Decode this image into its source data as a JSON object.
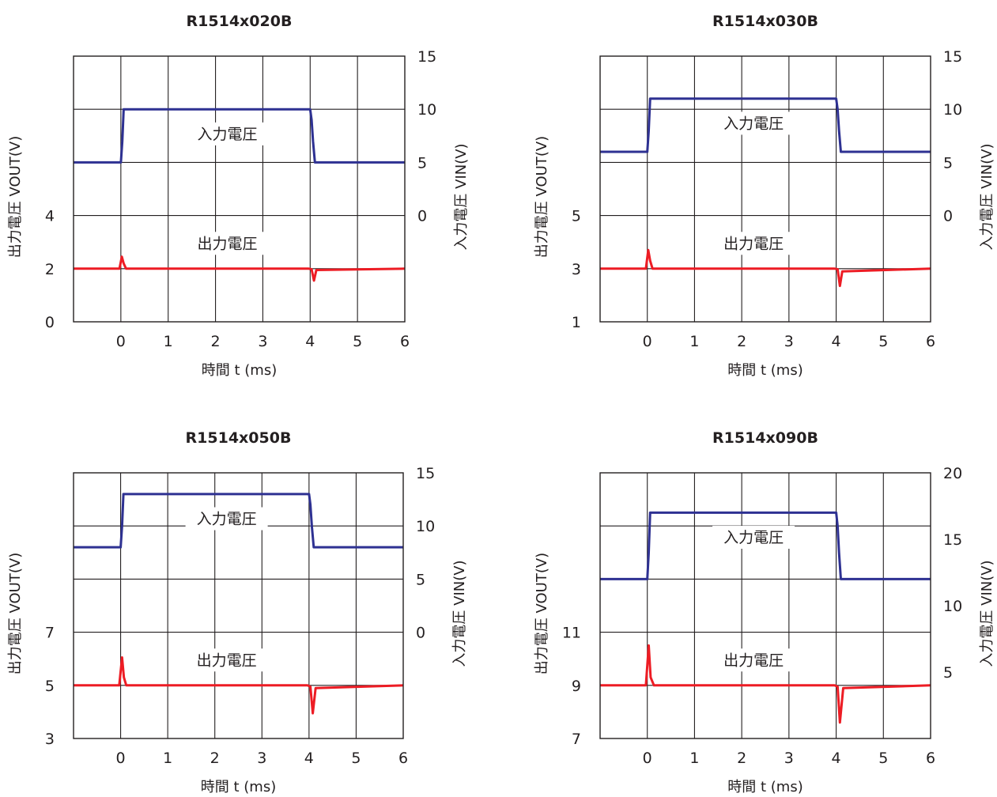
{
  "chart_data": [
    {
      "type": "line",
      "title": "R1514x020B",
      "xlabel": "時間 t (ms)",
      "ylabel_left": "出力電圧 VOUT(V)",
      "ylabel_right": "入力電圧 VIN(V)",
      "xlim": [
        -1,
        6
      ],
      "x_ticks": [
        "0",
        "1",
        "2",
        "3",
        "4",
        "5",
        "6"
      ],
      "left_ylim": [
        0,
        10
      ],
      "left_ticks": [
        "0",
        "2",
        "4"
      ],
      "right_ylim": [
        -10,
        15
      ],
      "right_ticks": [
        "0",
        "5",
        "10",
        "15"
      ],
      "grid": true,
      "series": [
        {
          "name": "入力電圧",
          "axis": "right",
          "color": "#2e3192",
          "x": [
            -1,
            0,
            0.03,
            0.06,
            4.0,
            4.03,
            4.06,
            4.1,
            6
          ],
          "y": [
            5,
            5,
            7,
            10,
            10,
            9,
            7,
            5,
            5
          ]
        },
        {
          "name": "出力電圧",
          "axis": "left",
          "color": "#ed1c24",
          "x": [
            -1,
            -0.03,
            0.02,
            0.06,
            0.11,
            3.97,
            4.03,
            4.08,
            4.13,
            6
          ],
          "y": [
            2,
            2,
            2.45,
            2.2,
            2,
            2,
            1.98,
            1.55,
            1.95,
            2
          ]
        }
      ]
    },
    {
      "type": "line",
      "title": "R1514x030B",
      "xlabel": "時間 t (ms)",
      "ylabel_left": "出力電圧 VOUT(V)",
      "ylabel_right": "入力電圧 VIN(V)",
      "xlim": [
        -1,
        6
      ],
      "x_ticks": [
        "0",
        "1",
        "2",
        "3",
        "4",
        "5",
        "6"
      ],
      "left_ylim": [
        1,
        11
      ],
      "left_ticks": [
        "1",
        "3",
        "5"
      ],
      "right_ylim": [
        -10,
        15
      ],
      "right_ticks": [
        "0",
        "5",
        "10",
        "15"
      ],
      "grid": true,
      "series": [
        {
          "name": "入力電圧",
          "axis": "right",
          "color": "#2e3192",
          "x": [
            -1,
            0,
            0.03,
            0.06,
            4.0,
            4.03,
            4.06,
            4.1,
            6
          ],
          "y": [
            6,
            6,
            8,
            11,
            11,
            10,
            8,
            6,
            6
          ]
        },
        {
          "name": "出力電圧",
          "axis": "left",
          "color": "#ed1c24",
          "x": [
            -1,
            -0.03,
            0.02,
            0.06,
            0.11,
            3.97,
            4.03,
            4.08,
            4.13,
            6
          ],
          "y": [
            3,
            3,
            3.7,
            3.3,
            3,
            3,
            2.98,
            2.35,
            2.9,
            3
          ]
        }
      ]
    },
    {
      "type": "line",
      "title": "R1514x050B",
      "xlabel": "時間 t (ms)",
      "ylabel_left": "出力電圧 VOUT(V)",
      "ylabel_right": "入力電圧 VIN(V)",
      "xlim": [
        -1,
        6
      ],
      "x_ticks": [
        "0",
        "1",
        "2",
        "3",
        "4",
        "5",
        "6"
      ],
      "left_ylim": [
        3,
        13
      ],
      "left_ticks": [
        "3",
        "5",
        "7"
      ],
      "right_ylim": [
        -10,
        15
      ],
      "right_ticks": [
        "0",
        "5",
        "10",
        "15"
      ],
      "grid": true,
      "series": [
        {
          "name": "入力電圧",
          "axis": "right",
          "color": "#2e3192",
          "x": [
            -1,
            0,
            0.03,
            0.06,
            4.0,
            4.03,
            4.06,
            4.1,
            6
          ],
          "y": [
            8,
            8,
            10,
            13,
            13,
            12,
            10,
            8,
            8
          ]
        },
        {
          "name": "出力電圧",
          "axis": "left",
          "color": "#ed1c24",
          "x": [
            -1,
            -0.03,
            0.03,
            0.07,
            0.12,
            3.97,
            4.03,
            4.08,
            4.14,
            6
          ],
          "y": [
            5,
            5,
            6.05,
            5.3,
            5,
            5,
            4.95,
            3.95,
            4.9,
            5
          ]
        }
      ]
    },
    {
      "type": "line",
      "title": "R1514x090B",
      "xlabel": "時間 t (ms)",
      "ylabel_left": "出力電圧 VOUT(V)",
      "ylabel_right": "入力電圧 VIN(V)",
      "xlim": [
        -1,
        6
      ],
      "x_ticks": [
        "0",
        "1",
        "2",
        "3",
        "4",
        "5",
        "6"
      ],
      "left_ylim": [
        7,
        17
      ],
      "left_ticks": [
        "7",
        "9",
        "11"
      ],
      "right_ylim": [
        0,
        20
      ],
      "right_ticks": [
        "5",
        "10",
        "15",
        "20"
      ],
      "grid": true,
      "series": [
        {
          "name": "入力電圧",
          "axis": "right",
          "color": "#2e3192",
          "x": [
            -1,
            0,
            0.03,
            0.06,
            4.0,
            4.03,
            4.06,
            4.1,
            6
          ],
          "y": [
            12,
            12,
            14,
            17,
            17,
            16,
            14,
            12,
            12
          ]
        },
        {
          "name": "出力電圧",
          "axis": "left",
          "color": "#ed1c24",
          "x": [
            -1,
            -0.03,
            0.03,
            0.07,
            0.14,
            3.97,
            4.03,
            4.08,
            4.15,
            6
          ],
          "y": [
            9,
            9,
            10.5,
            9.3,
            9,
            9,
            8.95,
            7.6,
            8.9,
            9
          ]
        }
      ]
    }
  ]
}
